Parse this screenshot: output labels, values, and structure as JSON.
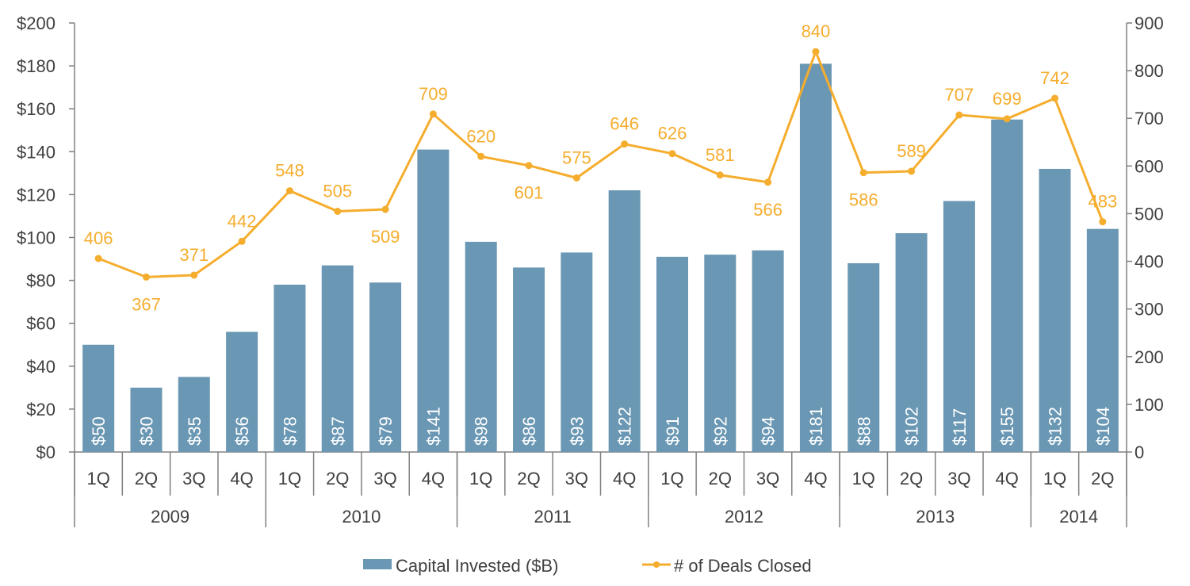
{
  "chart_data": {
    "type": "bar",
    "title": "",
    "xlabel": "",
    "ylabel": "",
    "categories": [
      "1Q",
      "2Q",
      "3Q",
      "4Q",
      "1Q",
      "2Q",
      "3Q",
      "4Q",
      "1Q",
      "2Q",
      "3Q",
      "4Q",
      "1Q",
      "2Q",
      "3Q",
      "4Q",
      "1Q",
      "2Q",
      "3Q",
      "4Q",
      "1Q",
      "2Q"
    ],
    "groups": [
      {
        "label": "2009",
        "count": 4
      },
      {
        "label": "2010",
        "count": 4
      },
      {
        "label": "2011",
        "count": 4
      },
      {
        "label": "2012",
        "count": 4
      },
      {
        "label": "2013",
        "count": 4
      },
      {
        "label": "2014",
        "count": 2
      }
    ],
    "series": [
      {
        "name": "Capital Invested ($B)",
        "type": "bar",
        "axis": "left",
        "color": "#6a97b3",
        "values": [
          50,
          30,
          35,
          56,
          78,
          87,
          79,
          141,
          98,
          86,
          93,
          122,
          91,
          92,
          94,
          181,
          88,
          102,
          117,
          155,
          132,
          104
        ],
        "labels": [
          "$50",
          "$30",
          "$35",
          "$56",
          "$78",
          "$87",
          "$79",
          "$141",
          "$98",
          "$86",
          "$93",
          "$122",
          "$91",
          "$92",
          "$94",
          "$181",
          "$88",
          "$102",
          "$117",
          "$155",
          "$132",
          "$104"
        ]
      },
      {
        "name": "# of Deals Closed",
        "type": "line",
        "axis": "right",
        "color": "#f5ad2e",
        "values": [
          406,
          367,
          371,
          442,
          548,
          505,
          509,
          709,
          620,
          601,
          575,
          646,
          626,
          581,
          566,
          840,
          586,
          589,
          707,
          699,
          742,
          483
        ],
        "labels": [
          "406",
          "367",
          "371",
          "442",
          "548",
          "505",
          "509",
          "709",
          "620",
          "601",
          "575",
          "646",
          "626",
          "581",
          "566",
          "840",
          "586",
          "589",
          "707",
          "699",
          "742",
          "483"
        ]
      }
    ],
    "y_left": {
      "range": [
        0,
        200
      ],
      "ticks": [
        0,
        20,
        40,
        60,
        80,
        100,
        120,
        140,
        160,
        180,
        200
      ],
      "tick_labels": [
        "$0",
        "$20",
        "$40",
        "$60",
        "$80",
        "$100",
        "$120",
        "$140",
        "$160",
        "$180",
        "$200"
      ]
    },
    "y_right": {
      "range": [
        0,
        900
      ],
      "ticks": [
        0,
        100,
        200,
        300,
        400,
        500,
        600,
        700,
        800,
        900
      ],
      "tick_labels": [
        "0",
        "100",
        "200",
        "300",
        "400",
        "500",
        "600",
        "700",
        "800",
        "900"
      ]
    },
    "grid": false,
    "legend": "bottom"
  }
}
